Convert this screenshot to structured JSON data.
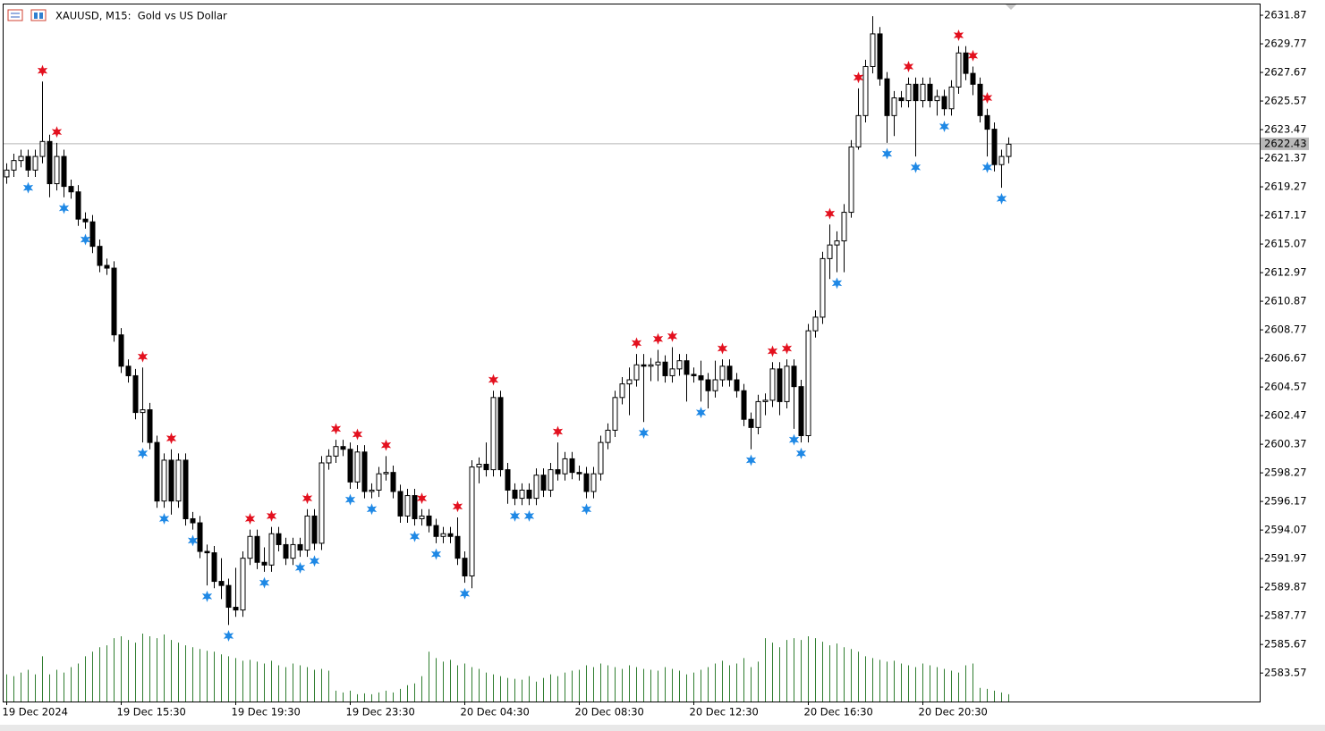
{
  "chart_data": {
    "type": "candlestick",
    "title": "XAUUSD, M15:  Gold vs US Dollar",
    "categories": [
      "19 Dec 2024",
      null,
      null,
      null,
      null,
      null,
      null,
      null,
      null,
      null,
      null,
      null,
      null,
      null,
      null,
      null,
      "19 Dec 15:30",
      null,
      null,
      null,
      null,
      null,
      null,
      null,
      null,
      null,
      null,
      null,
      null,
      null,
      null,
      null,
      "19 Dec 19:30",
      null,
      null,
      null,
      null,
      null,
      null,
      null,
      null,
      null,
      null,
      null,
      null,
      null,
      null,
      null,
      "19 Dec 23:30",
      null,
      null,
      null,
      null,
      null,
      null,
      null,
      null,
      null,
      null,
      null,
      null,
      null,
      null,
      null,
      "20 Dec 04:30",
      null,
      null,
      null,
      null,
      null,
      null,
      null,
      null,
      null,
      null,
      null,
      null,
      null,
      null,
      null,
      "20 Dec 08:30",
      null,
      null,
      null,
      null,
      null,
      null,
      null,
      null,
      null,
      null,
      null,
      null,
      null,
      null,
      null,
      "20 Dec 12:30",
      null,
      null,
      null,
      null,
      null,
      null,
      null,
      null,
      null,
      null,
      null,
      null,
      null,
      null,
      null,
      "20 Dec 16:30",
      null,
      null,
      null,
      null,
      null,
      null,
      null,
      null,
      null,
      null,
      null,
      null,
      null,
      null,
      null,
      "20 Dec 20:30",
      null,
      null,
      null,
      null,
      null,
      null,
      null,
      null,
      null,
      null,
      null,
      null
    ],
    "open": [
      2620.0,
      2620.5,
      2621.2,
      2621.5,
      2620.5,
      2621.5,
      2622.6,
      2619.5,
      2621.5,
      2619.3,
      2618.9,
      2616.9,
      2616.7,
      2614.9,
      2613.5,
      2613.3,
      2608.4,
      2606.1,
      2605.4,
      2602.7,
      2602.9,
      2600.5,
      2596.2,
      2599.2,
      2596.2,
      2599.2,
      2594.9,
      2594.6,
      2592.5,
      2592.4,
      2590.3,
      2590.0,
      2588.4,
      2588.2,
      2592.0,
      2593.6,
      2591.7,
      2591.5,
      2593.8,
      2593.0,
      2592.0,
      2593.0,
      2592.6,
      2595.1,
      2593.1,
      2599.0,
      2599.5,
      2600.2,
      2600.0,
      2597.6,
      2599.8,
      2596.9,
      2597.0,
      2598.2,
      2598.3,
      2596.9,
      2595.1,
      2596.6,
      2594.9,
      2595.1,
      2594.4,
      2593.6,
      2593.8,
      2593.6,
      2592.0,
      2590.7,
      2598.7,
      2598.9,
      2598.5,
      2603.8,
      2598.5,
      2597.0,
      2596.4,
      2597.0,
      2596.4,
      2598.1,
      2597.0,
      2598.5,
      2598.2,
      2599.3,
      2598.3,
      2598.2,
      2596.9,
      2598.2,
      2600.5,
      2601.4,
      2603.8,
      2604.8,
      2605.1,
      2606.2,
      2606.1,
      2606.2,
      2606.4,
      2605.4,
      2605.9,
      2606.5,
      2605.5,
      2605.4,
      2605.1,
      2604.3,
      2605.1,
      2606.1,
      2605.1,
      2604.3,
      2602.2,
      2601.6,
      2603.5,
      2603.6,
      2605.9,
      2603.5,
      2606.1,
      2604.6,
      2601.0,
      2608.7,
      2609.7,
      2614.0,
      2615.0,
      2615.3,
      2617.4,
      2622.2,
      2624.5,
      2628.1,
      2630.5,
      2627.2,
      2624.5,
      2625.8,
      2625.6,
      2626.8,
      2625.6,
      2626.8,
      2625.6,
      2625.9,
      2625.0,
      2626.6,
      2629.1,
      2627.6,
      2626.8,
      2624.5,
      2623.5,
      2620.9,
      2621.5
    ],
    "high": [
      2621.0,
      2621.7,
      2622.0,
      2622.0,
      2622.0,
      2627.0,
      2623.1,
      2622.5,
      2622.0,
      2619.8,
      2619.4,
      2617.4,
      2617.2,
      2615.4,
      2614.0,
      2613.8,
      2608.9,
      2606.6,
      2605.9,
      2606.0,
      2603.4,
      2601.0,
      2599.7,
      2600.0,
      2599.7,
      2599.7,
      2595.4,
      2595.1,
      2593.0,
      2592.9,
      2592.0,
      2590.5,
      2591.3,
      2592.5,
      2594.1,
      2594.1,
      2592.8,
      2594.3,
      2594.3,
      2593.5,
      2593.5,
      2593.5,
      2595.6,
      2595.6,
      2599.5,
      2600.0,
      2600.7,
      2600.7,
      2600.5,
      2600.3,
      2600.3,
      2597.5,
      2598.7,
      2599.5,
      2598.8,
      2597.4,
      2597.1,
      2597.1,
      2595.6,
      2595.6,
      2594.9,
      2594.3,
      2594.3,
      2595.0,
      2592.5,
      2599.2,
      2599.4,
      2600.5,
      2604.3,
      2604.3,
      2599.0,
      2597.5,
      2597.5,
      2597.5,
      2598.6,
      2598.6,
      2599.0,
      2600.5,
      2599.8,
      2599.8,
      2598.8,
      2598.7,
      2598.7,
      2601.0,
      2601.9,
      2604.3,
      2605.3,
      2606.0,
      2607.0,
      2607.0,
      2606.7,
      2607.3,
      2606.9,
      2607.5,
      2607.0,
      2607.0,
      2606.0,
      2606.5,
      2605.6,
      2606.5,
      2606.6,
      2606.6,
      2605.6,
      2604.8,
      2602.7,
      2604.0,
      2604.1,
      2606.4,
      2606.4,
      2606.6,
      2606.6,
      2605.1,
      2609.2,
      2610.2,
      2614.5,
      2616.5,
      2616.0,
      2618.0,
      2622.7,
      2626.5,
      2628.6,
      2631.8,
      2631.0,
      2627.7,
      2626.3,
      2626.3,
      2627.3,
      2627.3,
      2627.3,
      2627.3,
      2626.4,
      2626.4,
      2627.1,
      2629.6,
      2629.6,
      2628.1,
      2627.3,
      2625.0,
      2624.0,
      2622.0,
      2622.9
    ],
    "low": [
      2619.5,
      2620.0,
      2620.7,
      2620.0,
      2620.0,
      2621.0,
      2618.5,
      2619.0,
      2618.5,
      2618.4,
      2616.4,
      2616.2,
      2614.4,
      2613.0,
      2612.8,
      2607.9,
      2605.6,
      2604.9,
      2602.2,
      2600.5,
      2600.0,
      2595.7,
      2595.7,
      2595.2,
      2595.7,
      2594.4,
      2594.1,
      2592.0,
      2590.0,
      2589.8,
      2589.0,
      2587.1,
      2587.7,
      2587.7,
      2591.5,
      2591.2,
      2591.0,
      2591.0,
      2592.5,
      2591.5,
      2591.5,
      2592.1,
      2592.1,
      2592.6,
      2592.6,
      2598.5,
      2599.0,
      2599.5,
      2597.1,
      2597.1,
      2596.4,
      2596.4,
      2596.5,
      2597.7,
      2596.4,
      2594.6,
      2594.6,
      2594.4,
      2594.4,
      2593.9,
      2593.1,
      2593.1,
      2593.1,
      2591.5,
      2590.2,
      2589.8,
      2597.5,
      2598.0,
      2598.0,
      2598.0,
      2596.0,
      2595.9,
      2595.9,
      2595.9,
      2595.9,
      2596.5,
      2596.5,
      2597.7,
      2597.7,
      2597.8,
      2597.7,
      2596.4,
      2596.4,
      2597.7,
      2600.0,
      2600.9,
      2603.3,
      2602.5,
      2604.6,
      2602.0,
      2605.0,
      2605.0,
      2604.9,
      2604.9,
      2605.4,
      2603.5,
      2604.9,
      2603.5,
      2603.0,
      2603.8,
      2604.6,
      2604.6,
      2603.8,
      2601.7,
      2600.0,
      2601.1,
      2602.5,
      2603.1,
      2602.5,
      2603.0,
      2601.5,
      2600.5,
      2600.5,
      2608.2,
      2609.2,
      2612.5,
      2613.0,
      2613.0,
      2617.0,
      2622.0,
      2624.0,
      2627.6,
      2626.7,
      2622.5,
      2623.0,
      2625.1,
      2625.1,
      2621.5,
      2625.1,
      2625.1,
      2624.5,
      2624.5,
      2624.5,
      2626.1,
      2627.1,
      2626.0,
      2624.0,
      2621.5,
      2620.4,
      2619.2,
      2621.0
    ],
    "close": [
      2620.5,
      2621.2,
      2621.5,
      2620.5,
      2621.5,
      2622.6,
      2619.5,
      2621.5,
      2619.3,
      2618.9,
      2616.9,
      2616.7,
      2614.9,
      2613.5,
      2613.3,
      2608.4,
      2606.1,
      2605.4,
      2602.7,
      2602.9,
      2600.5,
      2596.2,
      2599.2,
      2596.2,
      2599.2,
      2594.9,
      2594.6,
      2592.5,
      2592.4,
      2590.3,
      2590.0,
      2588.4,
      2588.2,
      2592.0,
      2593.6,
      2591.7,
      2591.5,
      2593.8,
      2593.0,
      2592.0,
      2593.0,
      2592.6,
      2595.1,
      2593.1,
      2599.0,
      2599.5,
      2600.2,
      2600.0,
      2597.6,
      2599.8,
      2596.9,
      2597.0,
      2598.2,
      2598.3,
      2596.9,
      2595.1,
      2596.6,
      2594.9,
      2595.1,
      2594.4,
      2593.6,
      2593.8,
      2593.6,
      2592.0,
      2590.7,
      2598.7,
      2598.9,
      2598.5,
      2603.8,
      2598.5,
      2597.0,
      2596.4,
      2597.0,
      2596.4,
      2598.1,
      2597.0,
      2598.5,
      2598.2,
      2599.3,
      2598.3,
      2598.2,
      2596.9,
      2598.2,
      2600.5,
      2601.4,
      2603.8,
      2604.8,
      2605.1,
      2606.2,
      2606.1,
      2606.2,
      2606.4,
      2605.4,
      2605.9,
      2606.5,
      2605.5,
      2605.4,
      2605.1,
      2604.3,
      2605.1,
      2606.1,
      2605.1,
      2604.3,
      2602.2,
      2601.6,
      2603.5,
      2603.6,
      2605.9,
      2603.5,
      2606.1,
      2604.6,
      2601.0,
      2608.7,
      2609.7,
      2614.0,
      2615.0,
      2615.3,
      2617.4,
      2622.2,
      2624.5,
      2628.1,
      2630.5,
      2627.2,
      2624.5,
      2625.8,
      2625.6,
      2626.8,
      2625.6,
      2626.8,
      2625.6,
      2625.9,
      2625.0,
      2626.6,
      2629.1,
      2627.6,
      2626.8,
      2624.5,
      2623.5,
      2620.9,
      2621.5,
      2622.4
    ],
    "volume": {
      "color": "#2f7d2f",
      "values": [
        30,
        28,
        32,
        35,
        30,
        50,
        30,
        35,
        32,
        38,
        42,
        50,
        55,
        60,
        62,
        70,
        72,
        68,
        65,
        75,
        72,
        70,
        74,
        68,
        65,
        62,
        60,
        58,
        56,
        55,
        52,
        50,
        48,
        45,
        46,
        44,
        42,
        45,
        40,
        38,
        42,
        40,
        38,
        35,
        36,
        34,
        12,
        10,
        12,
        8,
        9,
        8,
        10,
        12,
        10,
        14,
        18,
        20,
        28,
        55,
        48,
        44,
        46,
        40,
        42,
        38,
        36,
        32,
        30,
        28,
        26,
        25,
        24,
        28,
        22,
        26,
        30,
        28,
        32,
        34,
        35,
        40,
        38,
        42,
        40,
        38,
        36,
        40,
        38,
        36,
        35,
        34,
        38,
        36,
        34,
        30,
        32,
        35,
        38,
        42,
        45,
        40,
        42,
        48,
        38,
        44,
        70,
        65,
        60,
        68,
        70,
        68,
        72,
        70,
        66,
        62,
        64,
        60,
        58,
        55,
        50,
        48,
        46,
        44,
        45,
        42,
        40,
        38,
        42,
        40,
        38,
        36,
        34,
        32,
        40,
        42,
        15,
        14,
        12,
        10,
        8
      ]
    },
    "signals": [
      {
        "color": "#e3101e",
        "x": [
          5,
          7,
          19,
          23,
          34,
          37,
          42,
          46,
          49,
          53,
          58,
          63,
          68,
          77,
          88,
          91,
          93,
          100,
          107,
          109,
          115,
          119,
          126,
          133,
          135,
          137
        ],
        "values": [
          2627.8,
          2623.3,
          2606.8,
          2600.8,
          2594.9,
          2595.1,
          2596.4,
          2601.5,
          2601.1,
          2600.3,
          2596.4,
          2595.8,
          2605.1,
          2601.3,
          2607.8,
          2608.1,
          2608.3,
          2607.4,
          2607.2,
          2607.4,
          2617.3,
          2627.3,
          2628.1,
          2630.4,
          2628.9,
          2625.8
        ]
      },
      {
        "color": "#1e88e5",
        "x": [
          3,
          8,
          11,
          19,
          22,
          26,
          28,
          31,
          36,
          41,
          43,
          48,
          51,
          57,
          60,
          64,
          71,
          73,
          81,
          89,
          97,
          104,
          110,
          111,
          116,
          123,
          127,
          131,
          137,
          139
        ],
        "values": [
          2619.2,
          2617.7,
          2615.4,
          2599.7,
          2594.9,
          2593.3,
          2589.2,
          2586.3,
          2590.2,
          2591.3,
          2591.8,
          2596.3,
          2595.6,
          2593.6,
          2592.3,
          2589.4,
          2595.1,
          2595.1,
          2595.6,
          2601.2,
          2602.7,
          2599.2,
          2600.7,
          2599.7,
          2612.2,
          2621.7,
          2620.7,
          2623.7,
          2620.7,
          2618.4
        ]
      }
    ],
    "current_price": {
      "value": 2622.43,
      "label": "2622.43"
    },
    "ylim": [
      2581.48,
      2632.66
    ],
    "yticks": [
      2583.57,
      2585.67,
      2587.77,
      2589.87,
      2591.97,
      2594.07,
      2596.17,
      2598.27,
      2600.37,
      2602.47,
      2604.57,
      2606.67,
      2608.77,
      2610.87,
      2612.97,
      2615.07,
      2617.17,
      2619.27,
      2621.37,
      2623.47,
      2625.57,
      2627.67,
      2629.77,
      2631.87
    ]
  }
}
